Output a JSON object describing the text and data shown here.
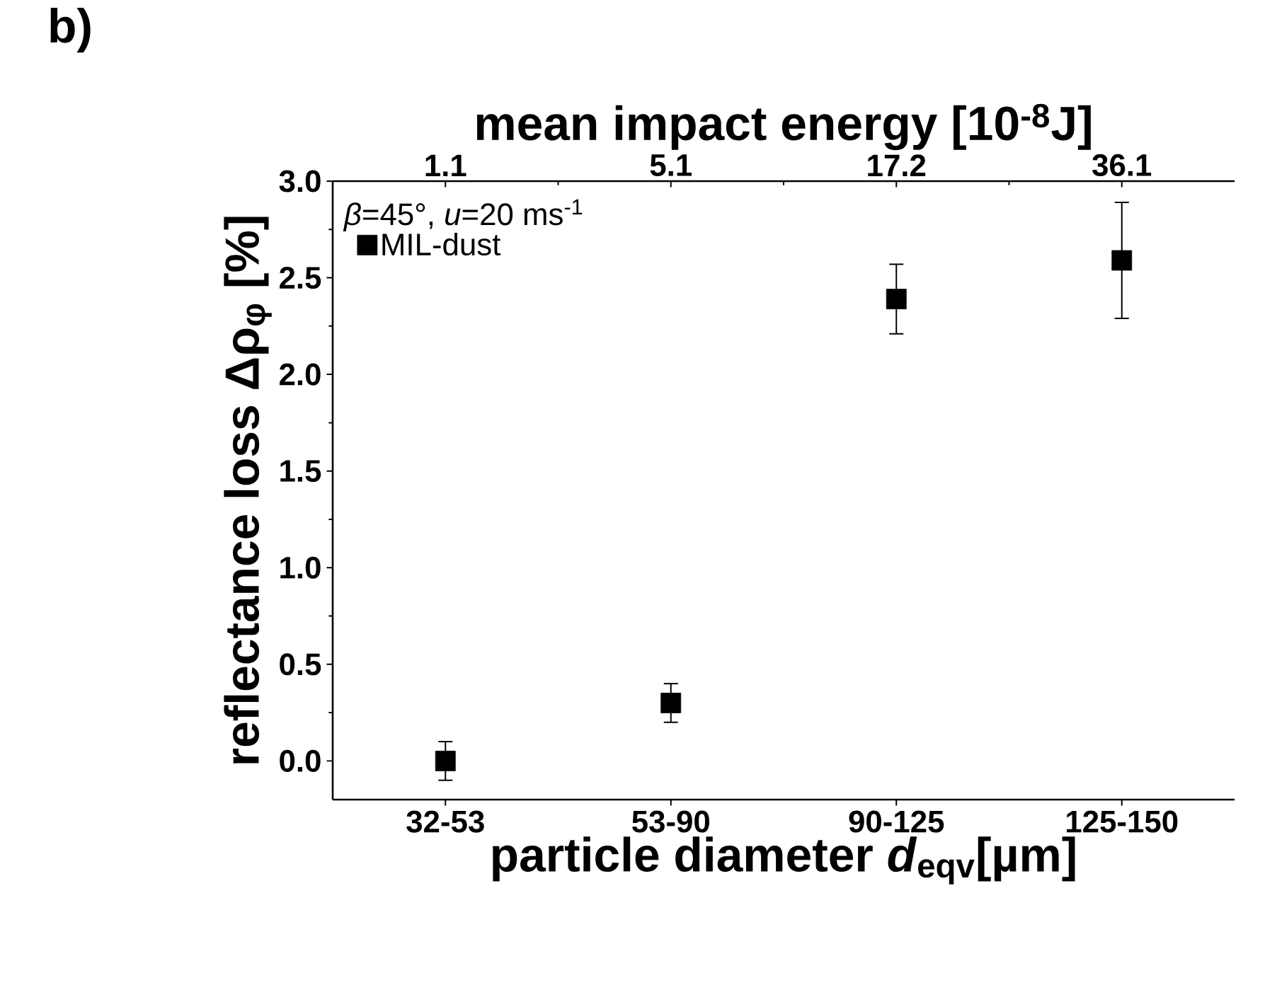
{
  "chart_data": {
    "type": "scatter",
    "categories": [
      "32-53",
      "53-90",
      "90-125",
      "125-150"
    ],
    "series": [
      {
        "name": "MIL-dust",
        "color": "#000000",
        "values": [
          0.0,
          0.3,
          2.39,
          2.59
        ],
        "errors": [
          0.1,
          0.1,
          0.18,
          0.3
        ]
      }
    ],
    "ylim": [
      -0.2,
      3.0
    ],
    "yticks": [
      {
        "value": 0,
        "label": "0.0"
      },
      0.5,
      {
        "value": 1,
        "label": "1.0"
      },
      1.5,
      {
        "value": 2,
        "label": "2.0"
      },
      2.5,
      {
        "value": 3,
        "label": "3.0"
      }
    ],
    "xlabel": "particle diameter *d*$_{eqv}$[µm]",
    "ylabel": "reflectance loss Δρ$_{φ}$ [%]",
    "x2label": "mean impact energy [10$^{-8}$J]",
    "legend_title": "*β*=45°, *u*=20 ms$^{-1}$",
    "legend": "top left",
    "marker": "square",
    "grid": false,
    "annotations": [
      "b)",
      "1.1",
      "5.1",
      "17.2",
      "36.1"
    ]
  }
}
